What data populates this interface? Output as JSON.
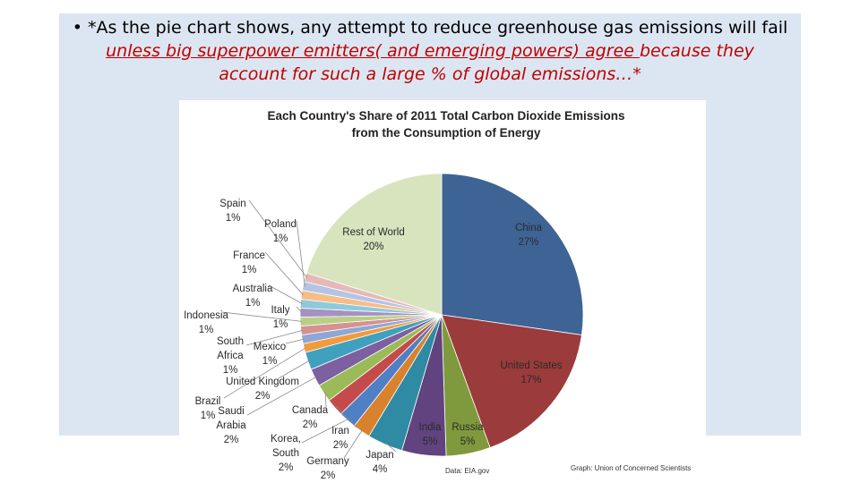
{
  "slide": {
    "bullet_symbol": "•",
    "line1": "*As the pie chart shows, any attempt to reduce greenhouse gas emissions will fail",
    "line2_underlined": "unless big superpower emitters( and emerging powers) agree ",
    "line2_rest": "because they",
    "line3": "account for such a large % of global emissions…*"
  },
  "chart_data": {
    "type": "pie",
    "title": "Each Country's Share of 2011 Total Carbon Dioxide Emissions from the Consumption of Energy",
    "title_lines": [
      "Each Country's Share of 2011 Total Carbon Dioxide Emissions",
      "from the Consumption of Energy"
    ],
    "source": "Data: EIA.gov",
    "credit": "Graph: Union of Concerned Scientists",
    "slices": [
      {
        "name": "China",
        "value": 27,
        "label": "27%",
        "color": "#3e6496"
      },
      {
        "name": "United States",
        "value": 17,
        "label": "17%",
        "color": "#9b3b3b"
      },
      {
        "name": "Russia",
        "value": 5,
        "label": "5%",
        "color": "#7e9a3d"
      },
      {
        "name": "India",
        "value": 5,
        "label": "5%",
        "color": "#60437f"
      },
      {
        "name": "Japan",
        "value": 4,
        "label": "4%",
        "color": "#2f8aa3"
      },
      {
        "name": "Germany",
        "value": 2,
        "label": "2%",
        "color": "#d9822e"
      },
      {
        "name": "Korea, South",
        "value": 2,
        "label": "2%",
        "color": "#4f7fc4"
      },
      {
        "name": "Iran",
        "value": 2,
        "label": "2%",
        "color": "#c44b4b"
      },
      {
        "name": "Canada",
        "value": 2,
        "label": "2%",
        "color": "#9bbb59"
      },
      {
        "name": "Saudi Arabia",
        "value": 2,
        "label": "2%",
        "color": "#7d60a0"
      },
      {
        "name": "United Kingdom",
        "value": 2,
        "label": "2%",
        "color": "#3fa1bd"
      },
      {
        "name": "Brazil",
        "value": 1,
        "label": "1%",
        "color": "#f39a3c"
      },
      {
        "name": "Mexico",
        "value": 1,
        "label": "1%",
        "color": "#8ea7d6"
      },
      {
        "name": "South Africa",
        "value": 1,
        "label": "1%",
        "color": "#d69191"
      },
      {
        "name": "Indonesia",
        "value": 1,
        "label": "1%",
        "color": "#b8cf86"
      },
      {
        "name": "Italy",
        "value": 1,
        "label": "1%",
        "color": "#a691c2"
      },
      {
        "name": "Australia",
        "value": 1,
        "label": "1%",
        "color": "#8fc9dc"
      },
      {
        "name": "France",
        "value": 1,
        "label": "1%",
        "color": "#f7bd86"
      },
      {
        "name": "Poland",
        "value": 1,
        "label": "1%",
        "color": "#b4c4e4"
      },
      {
        "name": "Spain",
        "value": 1,
        "label": "1%",
        "color": "#e6b9b8"
      },
      {
        "name": "Rest of World",
        "value": 20,
        "label": "20%",
        "color": "#d7e4bd"
      }
    ]
  }
}
